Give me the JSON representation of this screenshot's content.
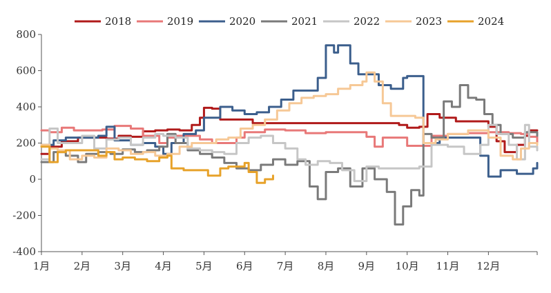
{
  "chart_data": {
    "type": "line",
    "title": "",
    "xlabel": "",
    "ylabel": "",
    "ylim": [
      -400,
      800
    ],
    "yticks": [
      -400,
      -200,
      0,
      200,
      400,
      600,
      800
    ],
    "xlim": [
      1,
      13.2
    ],
    "xticks": [
      {
        "x": 1,
        "label": "1月"
      },
      {
        "x": 2,
        "label": "2月"
      },
      {
        "x": 3,
        "label": "3月"
      },
      {
        "x": 4,
        "label": "4月"
      },
      {
        "x": 5,
        "label": "5月"
      },
      {
        "x": 6,
        "label": "6月"
      },
      {
        "x": 7,
        "label": "7月"
      },
      {
        "x": 8,
        "label": "8月"
      },
      {
        "x": 9,
        "label": "9月"
      },
      {
        "x": 10,
        "label": "10月"
      },
      {
        "x": 11,
        "label": "11月"
      },
      {
        "x": 12,
        "label": "12月"
      }
    ],
    "grid": false,
    "legend": "top",
    "series": [
      {
        "name": "2018",
        "color": "#b01a1a",
        "points": [
          [
            1.0,
            140
          ],
          [
            1.2,
            180
          ],
          [
            1.5,
            210
          ],
          [
            1.9,
            230
          ],
          [
            2.3,
            230
          ],
          [
            2.6,
            225
          ],
          [
            2.9,
            240
          ],
          [
            3.2,
            235
          ],
          [
            3.5,
            265
          ],
          [
            3.8,
            270
          ],
          [
            4.1,
            275
          ],
          [
            4.4,
            270
          ],
          [
            4.7,
            300
          ],
          [
            4.9,
            340
          ],
          [
            5.0,
            395
          ],
          [
            5.2,
            390
          ],
          [
            5.4,
            330
          ],
          [
            5.8,
            330
          ],
          [
            6.2,
            310
          ],
          [
            6.6,
            310
          ],
          [
            7.5,
            310
          ],
          [
            8.5,
            310
          ],
          [
            9.5,
            310
          ],
          [
            9.8,
            300
          ],
          [
            10.0,
            285
          ],
          [
            10.3,
            290
          ],
          [
            10.5,
            360
          ],
          [
            10.8,
            340
          ],
          [
            11.2,
            320
          ],
          [
            11.6,
            320
          ],
          [
            12.0,
            290
          ],
          [
            12.2,
            210
          ],
          [
            12.4,
            150
          ],
          [
            12.7,
            190
          ],
          [
            12.9,
            240
          ],
          [
            13.0,
            270
          ],
          [
            13.2,
            270
          ]
        ]
      },
      {
        "name": "2019",
        "color": "#e87878",
        "points": [
          [
            1.0,
            270
          ],
          [
            1.2,
            260
          ],
          [
            1.5,
            285
          ],
          [
            1.8,
            270
          ],
          [
            2.2,
            270
          ],
          [
            2.5,
            275
          ],
          [
            2.8,
            295
          ],
          [
            3.2,
            280
          ],
          [
            3.5,
            240
          ],
          [
            3.9,
            200
          ],
          [
            4.1,
            230
          ],
          [
            4.3,
            240
          ],
          [
            4.6,
            240
          ],
          [
            4.9,
            220
          ],
          [
            5.2,
            200
          ],
          [
            5.5,
            200
          ],
          [
            5.8,
            230
          ],
          [
            6.0,
            260
          ],
          [
            6.5,
            275
          ],
          [
            7.0,
            270
          ],
          [
            7.5,
            255
          ],
          [
            8.0,
            260
          ],
          [
            8.5,
            260
          ],
          [
            9.0,
            235
          ],
          [
            9.2,
            180
          ],
          [
            9.4,
            230
          ],
          [
            9.8,
            230
          ],
          [
            10.0,
            185
          ],
          [
            10.4,
            185
          ],
          [
            10.6,
            240
          ],
          [
            11.0,
            250
          ],
          [
            11.5,
            255
          ],
          [
            12.0,
            260
          ],
          [
            12.5,
            255
          ],
          [
            12.8,
            250
          ],
          [
            13.0,
            235
          ],
          [
            13.2,
            200
          ]
        ]
      },
      {
        "name": "2020",
        "color": "#3b5e8c",
        "points": [
          [
            1.0,
            190
          ],
          [
            1.3,
            215
          ],
          [
            1.6,
            230
          ],
          [
            2.0,
            230
          ],
          [
            2.4,
            240
          ],
          [
            2.6,
            290
          ],
          [
            2.8,
            215
          ],
          [
            3.2,
            190
          ],
          [
            3.5,
            200
          ],
          [
            3.8,
            180
          ],
          [
            4.0,
            140
          ],
          [
            4.2,
            200
          ],
          [
            4.5,
            250
          ],
          [
            4.8,
            270
          ],
          [
            5.0,
            340
          ],
          [
            5.2,
            340
          ],
          [
            5.4,
            400
          ],
          [
            5.7,
            380
          ],
          [
            6.0,
            360
          ],
          [
            6.3,
            370
          ],
          [
            6.6,
            400
          ],
          [
            6.9,
            440
          ],
          [
            7.2,
            490
          ],
          [
            7.5,
            490
          ],
          [
            7.8,
            560
          ],
          [
            8.0,
            740
          ],
          [
            8.2,
            700
          ],
          [
            8.3,
            740
          ],
          [
            8.6,
            640
          ],
          [
            8.8,
            580
          ],
          [
            9.1,
            580
          ],
          [
            9.3,
            520
          ],
          [
            9.6,
            500
          ],
          [
            9.9,
            560
          ],
          [
            10.0,
            570
          ],
          [
            10.3,
            570
          ],
          [
            10.4,
            200
          ],
          [
            10.6,
            200
          ],
          [
            10.8,
            230
          ],
          [
            11.2,
            230
          ],
          [
            11.6,
            230
          ],
          [
            11.8,
            130
          ],
          [
            12.0,
            15
          ],
          [
            12.3,
            50
          ],
          [
            12.7,
            30
          ],
          [
            12.9,
            30
          ],
          [
            13.1,
            60
          ],
          [
            13.2,
            90
          ]
        ]
      },
      {
        "name": "2021",
        "color": "#7a7a7a",
        "points": [
          [
            1.0,
            95
          ],
          [
            1.3,
            150
          ],
          [
            1.6,
            130
          ],
          [
            1.9,
            95
          ],
          [
            2.1,
            140
          ],
          [
            2.4,
            150
          ],
          [
            2.7,
            140
          ],
          [
            3.0,
            165
          ],
          [
            3.3,
            150
          ],
          [
            3.6,
            160
          ],
          [
            3.9,
            180
          ],
          [
            4.1,
            250
          ],
          [
            4.3,
            200
          ],
          [
            4.6,
            160
          ],
          [
            4.9,
            140
          ],
          [
            5.2,
            120
          ],
          [
            5.5,
            90
          ],
          [
            5.8,
            60
          ],
          [
            6.1,
            50
          ],
          [
            6.4,
            80
          ],
          [
            6.7,
            110
          ],
          [
            7.0,
            80
          ],
          [
            7.3,
            100
          ],
          [
            7.6,
            -40
          ],
          [
            7.8,
            -110
          ],
          [
            8.0,
            40
          ],
          [
            8.3,
            60
          ],
          [
            8.6,
            -40
          ],
          [
            8.9,
            60
          ],
          [
            9.2,
            0
          ],
          [
            9.5,
            -70
          ],
          [
            9.7,
            -250
          ],
          [
            9.9,
            -150
          ],
          [
            10.1,
            -60
          ],
          [
            10.3,
            -90
          ],
          [
            10.4,
            250
          ],
          [
            10.6,
            230
          ],
          [
            10.9,
            430
          ],
          [
            11.1,
            400
          ],
          [
            11.3,
            520
          ],
          [
            11.5,
            450
          ],
          [
            11.7,
            440
          ],
          [
            11.9,
            360
          ],
          [
            12.1,
            300
          ],
          [
            12.3,
            250
          ],
          [
            12.6,
            230
          ],
          [
            12.9,
            260
          ],
          [
            13.2,
            240
          ]
        ]
      },
      {
        "name": "2022",
        "color": "#c6c6c6",
        "points": [
          [
            1.0,
            110
          ],
          [
            1.2,
            280
          ],
          [
            1.4,
            200
          ],
          [
            1.7,
            200
          ],
          [
            2.0,
            240
          ],
          [
            2.3,
            170
          ],
          [
            2.6,
            220
          ],
          [
            2.9,
            230
          ],
          [
            3.2,
            190
          ],
          [
            3.5,
            230
          ],
          [
            3.8,
            250
          ],
          [
            4.0,
            240
          ],
          [
            4.3,
            230
          ],
          [
            4.6,
            170
          ],
          [
            4.9,
            160
          ],
          [
            5.2,
            150
          ],
          [
            5.5,
            140
          ],
          [
            5.8,
            200
          ],
          [
            6.1,
            230
          ],
          [
            6.4,
            240
          ],
          [
            6.7,
            200
          ],
          [
            7.0,
            170
          ],
          [
            7.3,
            110
          ],
          [
            7.5,
            80
          ],
          [
            7.8,
            100
          ],
          [
            8.1,
            90
          ],
          [
            8.4,
            50
          ],
          [
            8.7,
            -10
          ],
          [
            9.0,
            70
          ],
          [
            9.3,
            60
          ],
          [
            9.6,
            60
          ],
          [
            10.0,
            60
          ],
          [
            10.3,
            70
          ],
          [
            10.6,
            190
          ],
          [
            11.0,
            180
          ],
          [
            11.4,
            140
          ],
          [
            11.8,
            190
          ],
          [
            12.0,
            300
          ],
          [
            12.2,
            250
          ],
          [
            12.5,
            190
          ],
          [
            12.7,
            110
          ],
          [
            12.9,
            300
          ],
          [
            13.0,
            180
          ],
          [
            13.2,
            160
          ]
        ]
      },
      {
        "name": "2023",
        "color": "#f6c896",
        "points": [
          [
            1.0,
            190
          ],
          [
            1.2,
            170
          ],
          [
            1.4,
            160
          ],
          [
            1.7,
            110
          ],
          [
            2.0,
            130
          ],
          [
            2.3,
            120
          ],
          [
            2.6,
            170
          ],
          [
            2.9,
            160
          ],
          [
            3.2,
            140
          ],
          [
            3.5,
            150
          ],
          [
            3.8,
            130
          ],
          [
            4.1,
            140
          ],
          [
            4.4,
            180
          ],
          [
            4.7,
            200
          ],
          [
            5.0,
            200
          ],
          [
            5.3,
            220
          ],
          [
            5.6,
            230
          ],
          [
            5.9,
            280
          ],
          [
            6.2,
            300
          ],
          [
            6.5,
            330
          ],
          [
            6.8,
            380
          ],
          [
            7.1,
            420
          ],
          [
            7.4,
            450
          ],
          [
            7.7,
            460
          ],
          [
            8.0,
            470
          ],
          [
            8.3,
            500
          ],
          [
            8.6,
            520
          ],
          [
            8.9,
            540
          ],
          [
            9.0,
            590
          ],
          [
            9.2,
            540
          ],
          [
            9.4,
            420
          ],
          [
            9.6,
            350
          ],
          [
            9.8,
            350
          ],
          [
            10.0,
            350
          ],
          [
            10.2,
            340
          ],
          [
            10.4,
            200
          ],
          [
            10.7,
            220
          ],
          [
            11.0,
            250
          ],
          [
            11.5,
            270
          ],
          [
            12.0,
            230
          ],
          [
            12.3,
            130
          ],
          [
            12.6,
            110
          ],
          [
            12.8,
            170
          ],
          [
            13.0,
            200
          ],
          [
            13.2,
            190
          ]
        ]
      },
      {
        "name": "2024",
        "color": "#e7a22a",
        "points": [
          [
            1.0,
            180
          ],
          [
            1.1,
            180
          ],
          [
            1.2,
            95
          ],
          [
            1.4,
            150
          ],
          [
            1.6,
            160
          ],
          [
            1.9,
            160
          ],
          [
            2.2,
            160
          ],
          [
            2.4,
            130
          ],
          [
            2.6,
            150
          ],
          [
            2.8,
            110
          ],
          [
            3.0,
            120
          ],
          [
            3.3,
            110
          ],
          [
            3.6,
            100
          ],
          [
            3.9,
            120
          ],
          [
            4.1,
            130
          ],
          [
            4.2,
            60
          ],
          [
            4.5,
            50
          ],
          [
            4.8,
            50
          ],
          [
            5.1,
            20
          ],
          [
            5.4,
            60
          ],
          [
            5.6,
            70
          ],
          [
            5.8,
            70
          ],
          [
            6.0,
            90
          ],
          [
            6.1,
            40
          ],
          [
            6.3,
            -20
          ],
          [
            6.5,
            0
          ],
          [
            6.7,
            20
          ]
        ]
      }
    ]
  }
}
